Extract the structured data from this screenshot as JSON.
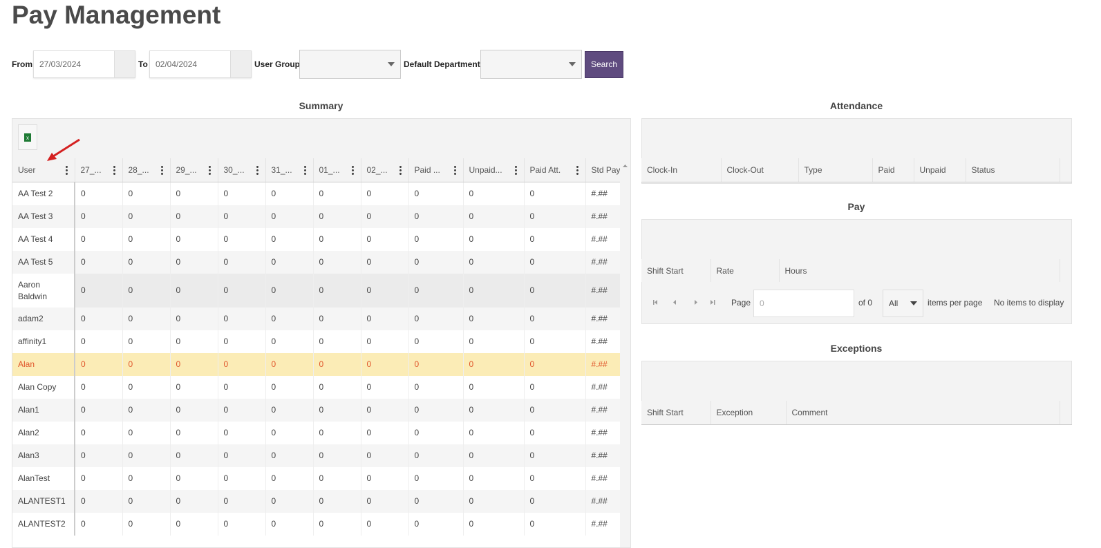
{
  "header": {
    "title": "Pay Management"
  },
  "filters": {
    "from_label": "From",
    "from_value": "27/03/2024",
    "to_label": "To",
    "to_value": "02/04/2024",
    "user_group_label": "User Group",
    "default_department_label": "Default Department",
    "search_button": "Search"
  },
  "summary": {
    "title": "Summary",
    "columns": [
      "User",
      "27_...",
      "28_...",
      "29_...",
      "30_...",
      "31_...",
      "01_...",
      "02_...",
      "Paid ...",
      "Unpaid...",
      "Paid Att.",
      "Std Pay"
    ],
    "rows": [
      [
        "AA Test 2",
        0,
        0,
        0,
        0,
        0,
        0,
        0,
        0,
        0,
        0,
        "#.##"
      ],
      [
        "AA Test 3",
        0,
        0,
        0,
        0,
        0,
        0,
        0,
        0,
        0,
        0,
        "#.##"
      ],
      [
        "AA Test 4",
        0,
        0,
        0,
        0,
        0,
        0,
        0,
        0,
        0,
        0,
        "#.##"
      ],
      [
        "AA Test 5",
        0,
        0,
        0,
        0,
        0,
        0,
        0,
        0,
        0,
        0,
        "#.##"
      ],
      [
        "Aaron Baldwin",
        0,
        0,
        0,
        0,
        0,
        0,
        0,
        0,
        0,
        0,
        "#.##"
      ],
      [
        "adam2",
        0,
        0,
        0,
        0,
        0,
        0,
        0,
        0,
        0,
        0,
        "#.##"
      ],
      [
        "affinity1",
        0,
        0,
        0,
        0,
        0,
        0,
        0,
        0,
        0,
        0,
        "#.##"
      ],
      [
        "Alan",
        0,
        0,
        0,
        0,
        0,
        0,
        0,
        0,
        0,
        0,
        "#.##"
      ],
      [
        "Alan Copy",
        0,
        0,
        0,
        0,
        0,
        0,
        0,
        0,
        0,
        0,
        "#.##"
      ],
      [
        "Alan1",
        0,
        0,
        0,
        0,
        0,
        0,
        0,
        0,
        0,
        0,
        "#.##"
      ],
      [
        "Alan2",
        0,
        0,
        0,
        0,
        0,
        0,
        0,
        0,
        0,
        0,
        "#.##"
      ],
      [
        "Alan3",
        0,
        0,
        0,
        0,
        0,
        0,
        0,
        0,
        0,
        0,
        "#.##"
      ],
      [
        "AlanTest",
        0,
        0,
        0,
        0,
        0,
        0,
        0,
        0,
        0,
        0,
        "#.##"
      ],
      [
        "ALANTEST1",
        0,
        0,
        0,
        0,
        0,
        0,
        0,
        0,
        0,
        0,
        "#.##"
      ],
      [
        "ALANTEST2",
        0,
        0,
        0,
        0,
        0,
        0,
        0,
        0,
        0,
        0,
        "#.##"
      ]
    ]
  },
  "attendance": {
    "title": "Attendance",
    "columns": [
      "Clock-In",
      "Clock-Out",
      "Type",
      "Paid",
      "Unpaid",
      "Status"
    ]
  },
  "pay": {
    "title": "Pay",
    "columns": [
      "Shift Start",
      "Rate",
      "Hours"
    ],
    "pager": {
      "page_label": "Page",
      "page_value": "0",
      "of_label": "of 0",
      "page_size": "All",
      "items_per_page": "items per page",
      "no_items": "No items to display"
    }
  },
  "exceptions": {
    "title": "Exceptions",
    "columns": [
      "Shift Start",
      "Exception",
      "Comment"
    ]
  }
}
